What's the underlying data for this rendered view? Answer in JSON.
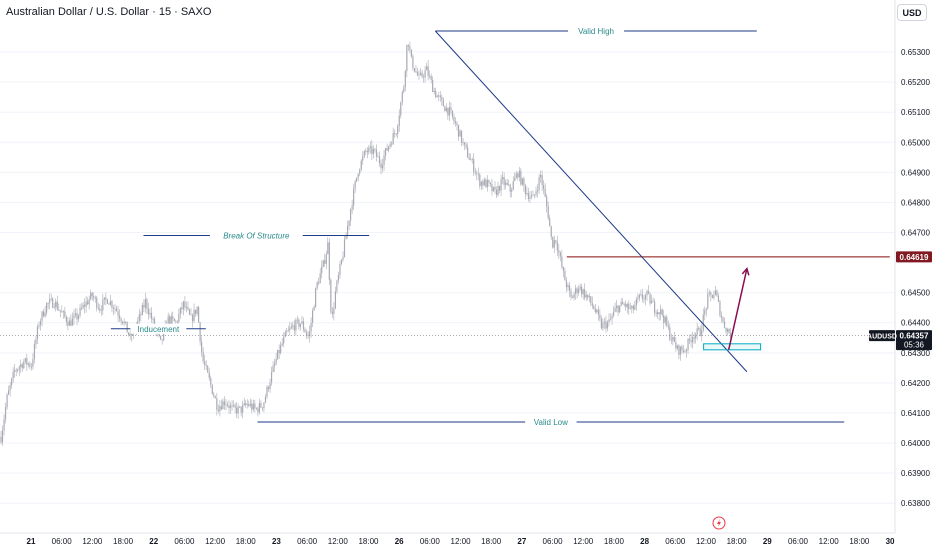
{
  "header": {
    "title": "Australian Dollar / U.S. Dollar · 15 · SAXO",
    "currency_button": "USD"
  },
  "chart_data": {
    "type": "candlestick",
    "symbol": "AUDUSD",
    "ylim": [
      0.6375,
      0.6557
    ],
    "y_ticks": [
      "0.65300",
      "0.65200",
      "0.65100",
      "0.65000",
      "0.64900",
      "0.64800",
      "0.64700",
      "0.64500",
      "0.64400",
      "0.64300",
      "0.64200",
      "0.64100",
      "0.64000",
      "0.63900",
      "0.63800"
    ],
    "x_ticks": [
      "21",
      "06:00",
      "12:00",
      "18:00",
      "22",
      "06:00",
      "12:00",
      "18:00",
      "23",
      "06:00",
      "12:00",
      "18:00",
      "26",
      "06:00",
      "12:00",
      "18:00",
      "27",
      "06:00",
      "12:00",
      "18:00",
      "28",
      "06:00",
      "12:00",
      "18:00",
      "29",
      "06:00",
      "12:00",
      "18:00",
      "30"
    ],
    "price_path": [
      [
        0,
        0.6402
      ],
      [
        0.8,
        0.6415
      ],
      [
        1.8,
        0.6424
      ],
      [
        3,
        0.6427
      ],
      [
        4,
        0.6426
      ],
      [
        5,
        0.644
      ],
      [
        6,
        0.6446
      ],
      [
        7,
        0.6447
      ],
      [
        8,
        0.6443
      ],
      [
        9,
        0.644
      ],
      [
        10,
        0.6442
      ],
      [
        11,
        0.6446
      ],
      [
        12,
        0.6449
      ],
      [
        13,
        0.6445
      ],
      [
        14,
        0.6448
      ],
      [
        15,
        0.6445
      ],
      [
        16,
        0.6441
      ],
      [
        17,
        0.6435
      ],
      [
        18,
        0.644
      ],
      [
        19,
        0.6447
      ],
      [
        20,
        0.644
      ],
      [
        21,
        0.6433
      ],
      [
        22,
        0.6441
      ],
      [
        23,
        0.644
      ],
      [
        24,
        0.6446
      ],
      [
        25,
        0.6441
      ],
      [
        25.8,
        0.6445
      ],
      [
        26.5,
        0.6428
      ],
      [
        27.5,
        0.642
      ],
      [
        28.5,
        0.6412
      ],
      [
        29.5,
        0.6414
      ],
      [
        30.5,
        0.6411
      ],
      [
        31.5,
        0.6411
      ],
      [
        32.5,
        0.6413
      ],
      [
        33.5,
        0.6411
      ],
      [
        34.5,
        0.6413
      ],
      [
        35.5,
        0.6422
      ],
      [
        36.5,
        0.643
      ],
      [
        37.5,
        0.6436
      ],
      [
        38.5,
        0.6439
      ],
      [
        39.5,
        0.644
      ],
      [
        40.5,
        0.6435
      ],
      [
        41.5,
        0.6452
      ],
      [
        42.5,
        0.646
      ],
      [
        43,
        0.6466
      ],
      [
        43.5,
        0.644
      ],
      [
        44,
        0.645
      ],
      [
        45,
        0.6463
      ],
      [
        46,
        0.6478
      ],
      [
        47,
        0.6491
      ],
      [
        48,
        0.6497
      ],
      [
        49,
        0.6497
      ],
      [
        50,
        0.6493
      ],
      [
        51,
        0.6499
      ],
      [
        52,
        0.6504
      ],
      [
        53,
        0.6519
      ],
      [
        53.5,
        0.6535
      ],
      [
        54,
        0.6527
      ],
      [
        55,
        0.6521
      ],
      [
        56,
        0.6524
      ],
      [
        57,
        0.6517
      ],
      [
        58,
        0.6513
      ],
      [
        59,
        0.651
      ],
      [
        60,
        0.6505
      ],
      [
        61,
        0.6498
      ],
      [
        62,
        0.6493
      ],
      [
        63,
        0.6487
      ],
      [
        64,
        0.6486
      ],
      [
        65,
        0.6483
      ],
      [
        66,
        0.6487
      ],
      [
        67,
        0.6484
      ],
      [
        68,
        0.649
      ],
      [
        69,
        0.6484
      ],
      [
        70,
        0.6481
      ],
      [
        71,
        0.6489
      ],
      [
        72,
        0.6476
      ],
      [
        72.5,
        0.6466
      ],
      [
        73,
        0.6468
      ],
      [
        74,
        0.6456
      ],
      [
        75,
        0.6448
      ],
      [
        76,
        0.6452
      ],
      [
        77,
        0.6449
      ],
      [
        78,
        0.6445
      ],
      [
        79,
        0.6439
      ],
      [
        80,
        0.644
      ],
      [
        81,
        0.6445
      ],
      [
        82,
        0.6446
      ],
      [
        83,
        0.6444
      ],
      [
        84,
        0.6448
      ],
      [
        85,
        0.6449
      ],
      [
        86,
        0.6445
      ],
      [
        87,
        0.6443
      ],
      [
        88,
        0.6436
      ],
      [
        89,
        0.6431
      ],
      [
        90,
        0.6431
      ],
      [
        91,
        0.6436
      ],
      [
        92,
        0.6437
      ],
      [
        93,
        0.6448
      ],
      [
        94,
        0.645
      ],
      [
        95,
        0.644
      ],
      [
        96,
        0.6436
      ]
    ],
    "annotations": [
      {
        "type": "level",
        "label": "Valid High",
        "price": 0.6537,
        "x": [
          53.2,
          95.5
        ]
      },
      {
        "type": "level",
        "label": "Break Of Structure",
        "price": 0.6469,
        "x": [
          14.8,
          44.5
        ]
      },
      {
        "type": "level",
        "label": "Inducement",
        "price": 0.6438,
        "x": [
          10.5,
          23
        ]
      },
      {
        "type": "level",
        "label": "Valid Low",
        "price": 0.6407,
        "x": [
          29.8,
          107
        ]
      },
      {
        "type": "level",
        "color": "#880e0e",
        "price": 0.64619,
        "x": [
          70.5,
          113
        ]
      },
      {
        "type": "trendline",
        "from": [
          53.2,
          0.6537
        ],
        "to": [
          93,
          0.6427
        ]
      },
      {
        "type": "zone",
        "price": [
          0.6431,
          0.6433
        ],
        "x": [
          88.5,
          96
        ]
      },
      {
        "type": "arrow",
        "color": "#880e4f",
        "from": [
          91.8,
          0.6431
        ],
        "to": [
          94.2,
          0.6458
        ]
      }
    ],
    "price_labels": [
      {
        "text": "0.64619",
        "price": 0.64619,
        "bg": "#801922"
      },
      {
        "symbol": "AUDUSD",
        "text": "0.64357",
        "countdown": "05:36",
        "price": 0.64357,
        "bg": "#131722"
      }
    ],
    "colors": {
      "candles": "#a8aab3",
      "lines": "#1e3a8a",
      "resistance": "#801922",
      "arrow": "#880e4f",
      "zone": "#00acc1"
    }
  }
}
